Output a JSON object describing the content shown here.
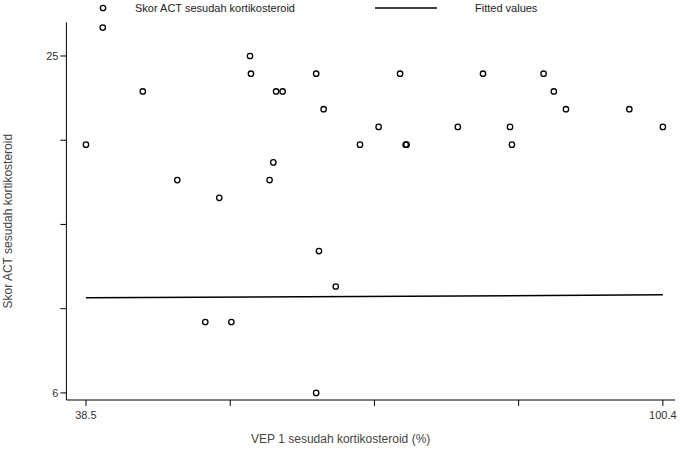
{
  "chart_data": {
    "type": "scatter",
    "x_label": "VEP 1 sesudah kortikosteroid (%)",
    "y_label": "Skor ACT sesudah kortikosteroid",
    "xlim": [
      36.4,
      101.7
    ],
    "ylim": [
      5.6,
      26.9
    ],
    "xticks": [
      38.5,
      {
        "value": 53.975,
        "label": null
      },
      {
        "value": 69.45,
        "label": null
      },
      {
        "value": 84.925,
        "label": null
      },
      100.4
    ],
    "yticks": [
      6,
      {
        "value": 10.75,
        "label": null
      },
      {
        "value": 15.5,
        "label": null
      },
      {
        "value": 20.25,
        "label": null
      },
      25
    ],
    "legend": "top",
    "grid": false,
    "series": [
      {
        "name": "Skor ACT sesudah kortikosteroid",
        "type": "scatter",
        "marker": "circle",
        "color": "#000000",
        "x": [
          38.5,
          40.3,
          44.6,
          48.3,
          51.3,
          52.8,
          54.1,
          56.1,
          56.2,
          58.2,
          58.6,
          58.9,
          59.6,
          63.2,
          63.2,
          63.5,
          64.0,
          65.3,
          67.9,
          69.9,
          72.2,
          72.8,
          72.9,
          78.4,
          81.1,
          84.0,
          84.2,
          87.6,
          88.7,
          90.0,
          96.8,
          100.4
        ],
        "values": [
          20,
          26.6,
          23,
          18,
          10,
          17,
          10,
          25,
          24,
          18,
          19,
          23,
          23,
          24,
          6,
          14,
          22,
          12,
          20,
          21,
          24,
          20,
          20,
          21,
          24,
          21,
          20,
          24,
          23,
          22,
          22,
          21
        ]
      },
      {
        "name": "Fitted values",
        "type": "line",
        "line_style": "solid",
        "color": "#000000",
        "x": [
          38.5,
          100.4
        ],
        "values": [
          11.36,
          11.53
        ]
      }
    ]
  }
}
